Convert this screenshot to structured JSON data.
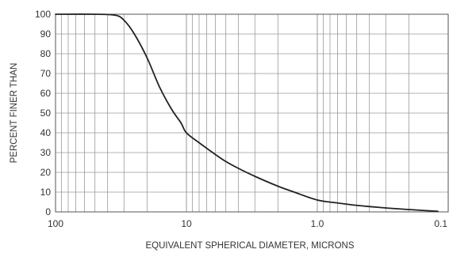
{
  "chart_data": {
    "type": "line",
    "title": "",
    "xlabel": "EQUIVALENT SPHERICAL DIAMETER, MICRONS",
    "ylabel": "PERCENT FINER THAN",
    "x_scale": "log",
    "x_reversed": true,
    "xlim": [
      100,
      0.1
    ],
    "ylim": [
      0,
      100
    ],
    "grid": true,
    "x_ticks": [
      {
        "value": 100,
        "label": "100"
      },
      {
        "value": 10,
        "label": "10"
      },
      {
        "value": 1,
        "label": "1.0"
      },
      {
        "value": 0.1,
        "label": "0.1"
      }
    ],
    "y_ticks": [
      {
        "value": 0,
        "label": "0"
      },
      {
        "value": 10,
        "label": "10"
      },
      {
        "value": 20,
        "label": "20"
      },
      {
        "value": 30,
        "label": "30"
      },
      {
        "value": 40,
        "label": "40"
      },
      {
        "value": 50,
        "label": "50"
      },
      {
        "value": 60,
        "label": "60"
      },
      {
        "value": 70,
        "label": "70"
      },
      {
        "value": 80,
        "label": "80"
      },
      {
        "value": 90,
        "label": "90"
      },
      {
        "value": 100,
        "label": "100"
      }
    ],
    "series": [
      {
        "line_color": "#222222",
        "points": [
          {
            "x": 100,
            "y": 100
          },
          {
            "x": 50,
            "y": 100
          },
          {
            "x": 35,
            "y": 99.5
          },
          {
            "x": 30,
            "y": 97
          },
          {
            "x": 25,
            "y": 90
          },
          {
            "x": 20,
            "y": 78
          },
          {
            "x": 16,
            "y": 63
          },
          {
            "x": 13,
            "y": 52
          },
          {
            "x": 11,
            "y": 45
          },
          {
            "x": 10,
            "y": 40
          },
          {
            "x": 8,
            "y": 35
          },
          {
            "x": 6,
            "y": 29
          },
          {
            "x": 5,
            "y": 25.5
          },
          {
            "x": 4,
            "y": 22
          },
          {
            "x": 3,
            "y": 18
          },
          {
            "x": 2,
            "y": 13
          },
          {
            "x": 1.5,
            "y": 10
          },
          {
            "x": 1,
            "y": 6
          },
          {
            "x": 0.7,
            "y": 4.5
          },
          {
            "x": 0.5,
            "y": 3.3
          },
          {
            "x": 0.3,
            "y": 2
          },
          {
            "x": 0.2,
            "y": 1.2
          },
          {
            "x": 0.12,
            "y": 0.3
          }
        ]
      }
    ]
  },
  "colors": {
    "background": "#ffffff",
    "grid": "#9a9a9a",
    "axis": "#555555",
    "text": "#333333"
  }
}
